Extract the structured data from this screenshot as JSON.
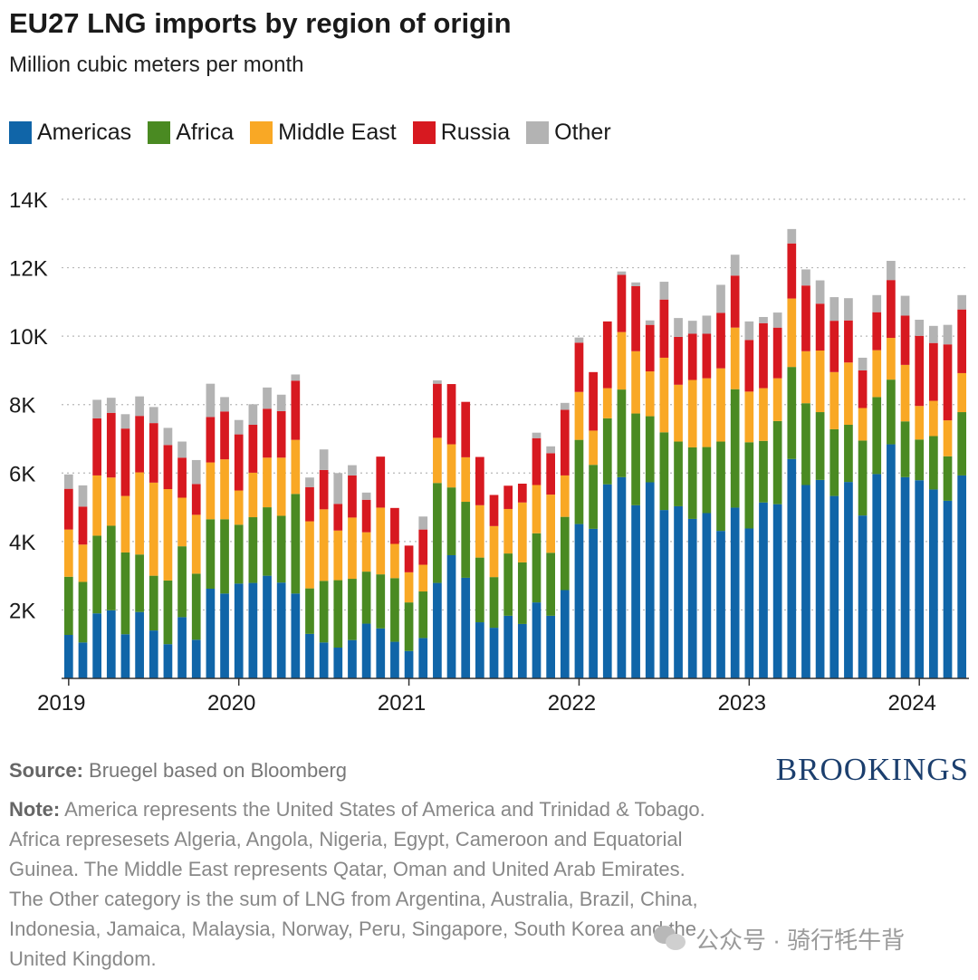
{
  "title": "EU27 LNG imports by region of origin",
  "subtitle": "Million cubic meters per month",
  "legend": {
    "items": [
      {
        "label": "Americas",
        "color": "#1065a8"
      },
      {
        "label": "Africa",
        "color": "#4a8a22"
      },
      {
        "label": "Middle East",
        "color": "#f9a825"
      },
      {
        "label": "Russia",
        "color": "#d71920"
      },
      {
        "label": "Other",
        "color": "#b3b3b3"
      }
    ]
  },
  "chart_data": {
    "type": "bar",
    "stacked": true,
    "title": "EU27 LNG imports by region of origin",
    "ylabel": "Million cubic meters per month",
    "ylim": [
      0,
      14000
    ],
    "yticks": [
      2000,
      4000,
      6000,
      8000,
      10000,
      12000,
      14000
    ],
    "ytick_labels": [
      "2K",
      "4K",
      "6K",
      "8K",
      "10K",
      "12K",
      "14K"
    ],
    "xtick_labels": [
      "2019",
      "2020",
      "2021",
      "2022",
      "2023",
      "2024"
    ],
    "grid": true,
    "categories": [
      "2019-01",
      "2019-02",
      "2019-03",
      "2019-04",
      "2019-05",
      "2019-06",
      "2019-07",
      "2019-08",
      "2019-09",
      "2019-10",
      "2019-11",
      "2019-12",
      "2020-01",
      "2020-02",
      "2020-03",
      "2020-04",
      "2020-05",
      "2020-06",
      "2020-07",
      "2020-08",
      "2020-09",
      "2020-10",
      "2020-11",
      "2020-12",
      "2021-01",
      "2021-02",
      "2021-03",
      "2021-04",
      "2021-05",
      "2021-06",
      "2021-07",
      "2021-08",
      "2021-09",
      "2021-10",
      "2021-11",
      "2021-12",
      "2022-01",
      "2022-02",
      "2022-03",
      "2022-04",
      "2022-05",
      "2022-06",
      "2022-07",
      "2022-08",
      "2022-09",
      "2022-10",
      "2022-11",
      "2022-12",
      "2023-01",
      "2023-02",
      "2023-03",
      "2023-04",
      "2023-05",
      "2023-06",
      "2023-07",
      "2023-08",
      "2023-09",
      "2023-10",
      "2023-11",
      "2023-12",
      "2024-01",
      "2024-02",
      "2024-03",
      "2024-04"
    ],
    "series": [
      {
        "name": "Americas",
        "color": "#1065a8",
        "values": [
          1270,
          1050,
          1900,
          1990,
          1290,
          1940,
          1400,
          1000,
          1790,
          1130,
          2620,
          2480,
          2770,
          2790,
          3000,
          2800,
          2480,
          1300,
          1050,
          900,
          1120,
          1600,
          1460,
          1070,
          800,
          1180,
          2790,
          3600,
          2940,
          1640,
          1480,
          1830,
          1590,
          2220,
          1830,
          2580,
          4510,
          4370,
          5670,
          5880,
          5060,
          5730,
          4920,
          5030,
          4660,
          4830,
          4310,
          4990,
          4380,
          5140,
          5090,
          6410,
          5650,
          5800,
          5330,
          5740,
          4760,
          5970,
          6840,
          5880,
          5790,
          5520,
          5190,
          5930
        ]
      },
      {
        "name": "Africa",
        "color": "#4a8a22",
        "values": [
          1700,
          1770,
          2270,
          2470,
          2390,
          1680,
          1600,
          1860,
          2070,
          1930,
          2030,
          2170,
          1720,
          1920,
          2000,
          1950,
          2910,
          1330,
          1800,
          1970,
          1790,
          1520,
          1580,
          1860,
          1420,
          1360,
          2920,
          1980,
          2220,
          1890,
          1480,
          1820,
          1800,
          2020,
          1840,
          2140,
          2460,
          1870,
          1930,
          2560,
          2680,
          1930,
          2270,
          1890,
          2090,
          1930,
          2610,
          3460,
          2520,
          1800,
          2430,
          2690,
          2390,
          1980,
          1950,
          1670,
          2190,
          2250,
          1890,
          1630,
          1190,
          1560,
          1300,
          1850
        ]
      },
      {
        "name": "Middle East",
        "color": "#f9a825",
        "values": [
          1380,
          1090,
          1760,
          1410,
          1650,
          2400,
          2720,
          2670,
          1420,
          1720,
          1660,
          1750,
          1000,
          1300,
          1450,
          1700,
          1580,
          1960,
          2090,
          1450,
          1790,
          1150,
          1950,
          1000,
          880,
          780,
          1320,
          1260,
          1300,
          1530,
          1490,
          1300,
          1750,
          1410,
          1700,
          1210,
          1400,
          1000,
          880,
          1680,
          1820,
          1310,
          2180,
          1660,
          1970,
          2010,
          2140,
          1800,
          1480,
          1540,
          1250,
          2000,
          1520,
          1800,
          1670,
          1820,
          950,
          1370,
          1220,
          1650,
          980,
          1030,
          1050,
          1140
        ]
      },
      {
        "name": "Russia",
        "color": "#d71920",
        "values": [
          1190,
          1110,
          1670,
          1890,
          1970,
          1650,
          1740,
          1290,
          1170,
          900,
          1330,
          1400,
          1640,
          1400,
          1430,
          1360,
          1730,
          1000,
          1150,
          780,
          1230,
          950,
          1490,
          1050,
          780,
          1030,
          1580,
          1760,
          1620,
          1410,
          910,
          680,
          550,
          1370,
          1210,
          1920,
          1440,
          1710,
          1950,
          1670,
          1900,
          1360,
          1700,
          1400,
          1350,
          1300,
          1620,
          1520,
          1510,
          1900,
          1480,
          1610,
          1920,
          1370,
          1500,
          1230,
          1100,
          1110,
          1690,
          1440,
          2050,
          1690,
          2220,
          1860
        ]
      },
      {
        "name": "Other",
        "color": "#b3b3b3",
        "values": [
          420,
          620,
          540,
          440,
          420,
          570,
          470,
          500,
          470,
          700,
          970,
          420,
          420,
          600,
          620,
          480,
          180,
          280,
          600,
          900,
          300,
          210,
          0,
          0,
          0,
          380,
          100,
          0,
          0,
          0,
          0,
          0,
          0,
          160,
          200,
          200,
          150,
          0,
          0,
          100,
          110,
          130,
          520,
          550,
          380,
          530,
          820,
          610,
          540,
          180,
          440,
          420,
          470,
          680,
          690,
          650,
          370,
          500,
          560,
          580,
          470,
          500,
          570,
          420
        ]
      }
    ]
  },
  "footer": {
    "source_label": "Source:",
    "source_text": "Bruegel based on Bloomberg",
    "note_label": "Note:",
    "note_text": "America represents the United States of America and Trinidad & Tobago. Africa represesets Algeria, Angola, Nigeria, Egypt, Cameroon and Equatorial Guinea. The Middle East represents Qatar, Oman and United Arab Emirates. The Other category is the sum of LNG from Argentina, Australia, Brazil, China, Indonesia, Jamaica, Malaysia, Norway, Peru, Singapore, South Korea and the United Kingdom.",
    "brand": "BROOKINGS",
    "watermark": "公众号 · 骑行牦牛背"
  }
}
